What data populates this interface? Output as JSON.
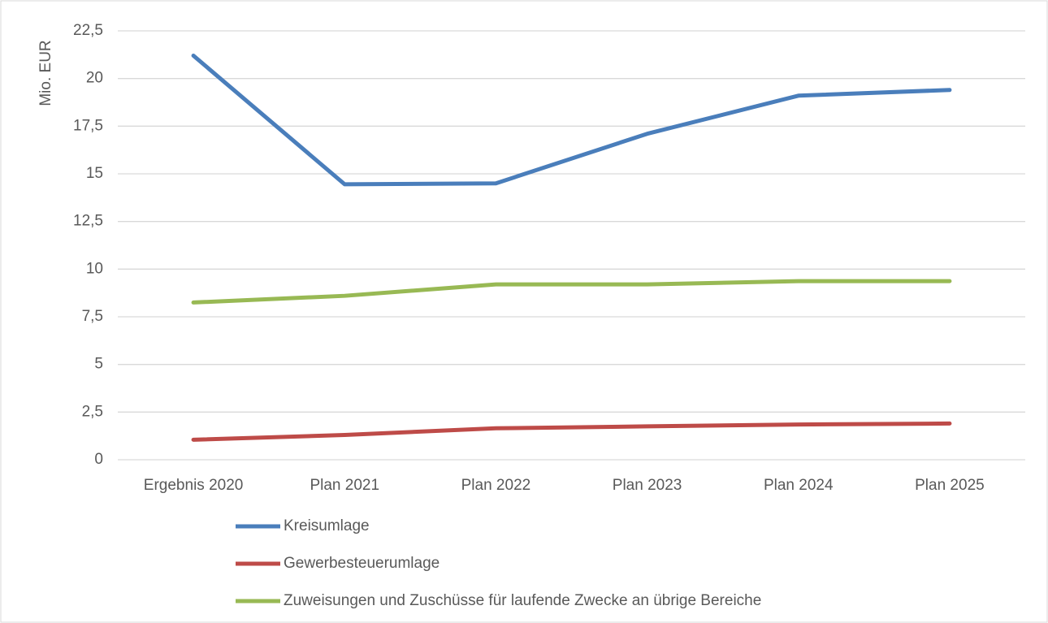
{
  "chart_data": {
    "type": "line",
    "y_label": "Mio. EUR",
    "categories": [
      "Ergebnis 2020",
      "Plan 2021",
      "Plan 2022",
      "Plan 2023",
      "Plan 2024",
      "Plan 2025"
    ],
    "series": [
      {
        "name": "Kreisumlage",
        "color": "#4a7ebb",
        "values": [
          21.2,
          14.45,
          14.5,
          17.1,
          19.1,
          19.4
        ]
      },
      {
        "name": "Gewerbesteuerumlage",
        "color": "#be4b48",
        "values": [
          1.05,
          1.3,
          1.65,
          1.75,
          1.85,
          1.9
        ]
      },
      {
        "name": "Zuweisungen und Zuschüsse für laufende Zwecke an übrige Bereiche",
        "color": "#98b954",
        "values": [
          8.25,
          8.6,
          9.2,
          9.2,
          9.37,
          9.37
        ]
      }
    ],
    "ylim": [
      0,
      22.5
    ],
    "yticks": [
      0,
      {
        "value": 2.5,
        "label": "2,5"
      },
      5,
      {
        "value": 7.5,
        "label": "7,5"
      },
      10,
      {
        "value": 12.5,
        "label": "12,5"
      },
      15,
      {
        "value": 17.5,
        "label": "17,5"
      },
      20,
      {
        "value": 22.5,
        "label": "22,5"
      }
    ],
    "grid": true,
    "legend": "bottom"
  }
}
